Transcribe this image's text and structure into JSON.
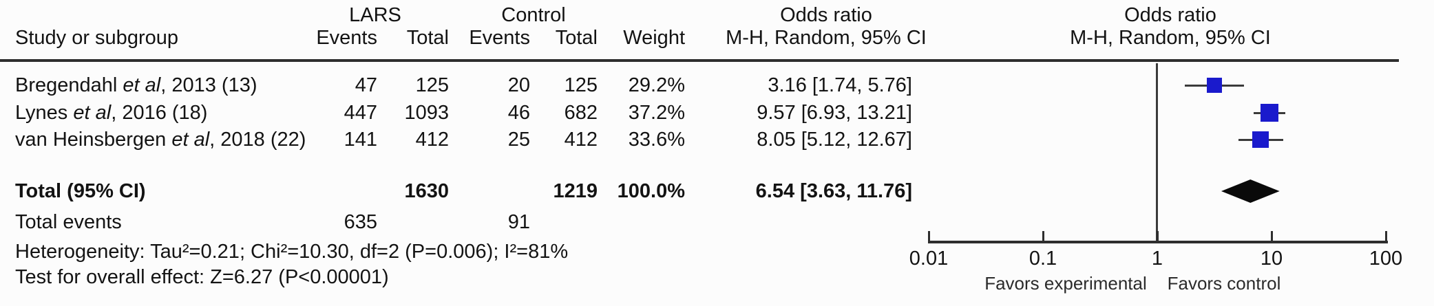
{
  "header": {
    "study_col": "Study or subgroup",
    "group_lars": "LARS",
    "group_control": "Control",
    "events": "Events",
    "total": "Total",
    "weight": "Weight",
    "or_title": "Odds ratio",
    "or_subtitle": "M-H, Random, 95% CI"
  },
  "rows": [
    {
      "study_pre": "Bregendahl ",
      "study_italic": "et al",
      "study_post": ", 2013 (13)",
      "lars_events": "47",
      "lars_total": "125",
      "control_events": "20",
      "control_total": "125",
      "weight": "29.2%",
      "ci_text": "3.16 [1.74, 5.76]"
    },
    {
      "study_pre": "Lynes ",
      "study_italic": "et al",
      "study_post": ", 2016 (18)",
      "lars_events": "447",
      "lars_total": "1093",
      "control_events": "46",
      "control_total": "682",
      "weight": "37.2%",
      "ci_text": "9.57 [6.93, 13.21]"
    },
    {
      "study_pre": "van Heinsbergen ",
      "study_italic": "et al",
      "study_post": ", 2018 (22)",
      "lars_events": "141",
      "lars_total": "412",
      "control_events": "25",
      "control_total": "412",
      "weight": "33.6%",
      "ci_text": "8.05 [5.12, 12.67]"
    }
  ],
  "total_row": {
    "label": "Total (95% CI)",
    "lars_total": "1630",
    "control_total": "1219",
    "weight": "100.0%",
    "ci_text": "6.54 [3.63, 11.76]"
  },
  "total_events_row": {
    "label": "Total events",
    "lars_events": "635",
    "control_events": "91"
  },
  "heterogeneity_text": "Heterogeneity: Tau²=0.21; Chi²=10.30, df=2 (P=0.006); I²=81%",
  "overall_effect_text": "Test for overall effect: Z=6.27 (P<0.00001)",
  "axis": {
    "tick_labels": [
      "0.01",
      "0.1",
      "1",
      "10",
      "100"
    ],
    "favors_left": "Favors experimental",
    "favors_right": "Favors control"
  },
  "colors": {
    "marker_blue": "#1a1acc",
    "diamond_black": "#0a0a0a",
    "line_dark": "#3a3a3a"
  },
  "chart_data": {
    "type": "forest",
    "x_scale": "log10",
    "x_ticks": [
      0.01,
      0.1,
      1,
      10,
      100
    ],
    "null_line": 1,
    "effect_measure": "Odds ratio M-H, Random, 95% CI",
    "studies": [
      {
        "name": "Bregendahl et al, 2013 (13)",
        "lars_events": 47,
        "lars_total": 125,
        "control_events": 20,
        "control_total": 125,
        "weight_pct": 29.2,
        "or": 3.16,
        "ci_low": 1.74,
        "ci_high": 5.76
      },
      {
        "name": "Lynes et al, 2016 (18)",
        "lars_events": 447,
        "lars_total": 1093,
        "control_events": 46,
        "control_total": 682,
        "weight_pct": 37.2,
        "or": 9.57,
        "ci_low": 6.93,
        "ci_high": 13.21
      },
      {
        "name": "van Heinsbergen et al, 2018 (22)",
        "lars_events": 141,
        "lars_total": 412,
        "control_events": 25,
        "control_total": 412,
        "weight_pct": 33.6,
        "or": 8.05,
        "ci_low": 5.12,
        "ci_high": 12.67
      }
    ],
    "total": {
      "or": 6.54,
      "ci_low": 3.63,
      "ci_high": 11.76,
      "lars_total": 1630,
      "control_total": 1219,
      "weight_pct": 100.0,
      "lars_events": 635,
      "control_events": 91
    },
    "heterogeneity": {
      "tau2": 0.21,
      "chi2": 10.3,
      "df": 2,
      "p": 0.006,
      "i2_pct": 81
    },
    "overall_effect": {
      "z": 6.27,
      "p": "<0.00001"
    },
    "favors": {
      "left": "Favors experimental",
      "right": "Favors control"
    }
  }
}
